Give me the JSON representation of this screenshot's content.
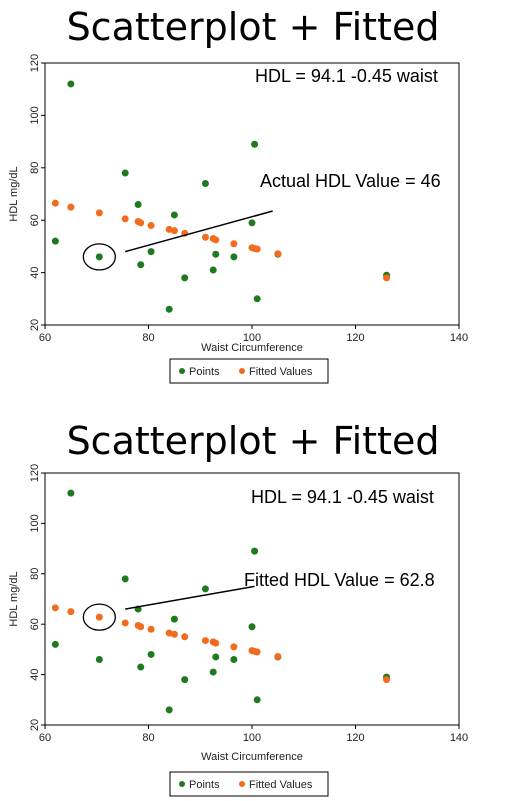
{
  "chart_data": [
    {
      "type": "scatter",
      "title": "Scatterplot + Fitted",
      "xlabel": "Waist Circumference",
      "ylabel": "HDL mg/dL",
      "xlim": [
        60,
        140
      ],
      "ylim": [
        20,
        120
      ],
      "xticks": [
        60,
        80,
        100,
        120,
        140
      ],
      "yticks": [
        20,
        40,
        60,
        80,
        100,
        120
      ],
      "legend_position": "bottom",
      "annotations": [
        {
          "text": "HDL = 94.1 -0.45 waist"
        },
        {
          "text": "Actual HDL Value = 46"
        }
      ],
      "highlight": {
        "x": 70.5,
        "y": 46
      },
      "pointer_line": {
        "from": [
          75.5,
          48
        ],
        "to": [
          104,
          63.5
        ]
      },
      "series": [
        {
          "name": "Points",
          "color": "#1f7a1f",
          "points": [
            [
              65,
              112
            ],
            [
              62,
              52
            ],
            [
              70.5,
              46
            ],
            [
              75.5,
              78
            ],
            [
              78,
              66
            ],
            [
              78.5,
              43
            ],
            [
              80.5,
              48
            ],
            [
              84,
              26
            ],
            [
              85,
              62
            ],
            [
              87,
              38
            ],
            [
              91,
              74
            ],
            [
              92.5,
              41
            ],
            [
              93,
              47
            ],
            [
              96.5,
              46
            ],
            [
              100,
              59
            ],
            [
              100.5,
              89
            ],
            [
              101,
              30
            ],
            [
              105,
              47
            ],
            [
              126,
              39
            ]
          ]
        },
        {
          "name": "Fitted Values",
          "color": "#f26b1f",
          "points": [
            [
              62,
              66.5
            ],
            [
              65,
              65
            ],
            [
              70.5,
              62.8
            ],
            [
              75.5,
              60.5
            ],
            [
              78,
              59.5
            ],
            [
              78.5,
              59
            ],
            [
              80.5,
              58
            ],
            [
              84,
              56.5
            ],
            [
              85,
              56
            ],
            [
              87,
              55
            ],
            [
              91,
              53.5
            ],
            [
              92.5,
              53
            ],
            [
              93,
              52.5
            ],
            [
              96.5,
              51
            ],
            [
              100,
              49.5
            ],
            [
              100.5,
              49.2
            ],
            [
              101,
              49
            ],
            [
              105,
              47.2
            ],
            [
              126,
              38
            ]
          ]
        }
      ]
    },
    {
      "type": "scatter",
      "title": "Scatterplot + Fitted",
      "xlabel": "Waist Circumference",
      "ylabel": "HDL mg/dL",
      "xlim": [
        60,
        140
      ],
      "ylim": [
        20,
        120
      ],
      "xticks": [
        60,
        80,
        100,
        120,
        140
      ],
      "yticks": [
        20,
        40,
        60,
        80,
        100,
        120
      ],
      "legend_position": "bottom",
      "annotations": [
        {
          "text": "HDL = 94.1 -0.45 waist"
        },
        {
          "text": "Fitted HDL Value = 62.8"
        }
      ],
      "highlight": {
        "x": 70.5,
        "y": 62.8
      },
      "pointer_line": {
        "from": [
          75.5,
          66
        ],
        "to": [
          100.5,
          75
        ]
      },
      "series": [
        {
          "name": "Points",
          "color": "#1f7a1f",
          "points": [
            [
              65,
              112
            ],
            [
              62,
              52
            ],
            [
              70.5,
              46
            ],
            [
              75.5,
              78
            ],
            [
              78,
              66
            ],
            [
              78.5,
              43
            ],
            [
              80.5,
              48
            ],
            [
              84,
              26
            ],
            [
              85,
              62
            ],
            [
              87,
              38
            ],
            [
              91,
              74
            ],
            [
              92.5,
              41
            ],
            [
              93,
              47
            ],
            [
              96.5,
              46
            ],
            [
              100,
              59
            ],
            [
              100.5,
              89
            ],
            [
              101,
              30
            ],
            [
              105,
              47
            ],
            [
              126,
              39
            ]
          ]
        },
        {
          "name": "Fitted Values",
          "color": "#f26b1f",
          "points": [
            [
              62,
              66.5
            ],
            [
              65,
              65
            ],
            [
              70.5,
              62.8
            ],
            [
              75.5,
              60.5
            ],
            [
              78,
              59.5
            ],
            [
              78.5,
              59
            ],
            [
              80.5,
              58
            ],
            [
              84,
              56.5
            ],
            [
              85,
              56
            ],
            [
              87,
              55
            ],
            [
              91,
              53.5
            ],
            [
              92.5,
              53
            ],
            [
              93,
              52.5
            ],
            [
              96.5,
              51
            ],
            [
              100,
              49.5
            ],
            [
              100.5,
              49.2
            ],
            [
              101,
              49
            ],
            [
              105,
              47.2
            ],
            [
              126,
              38
            ]
          ]
        }
      ]
    }
  ]
}
